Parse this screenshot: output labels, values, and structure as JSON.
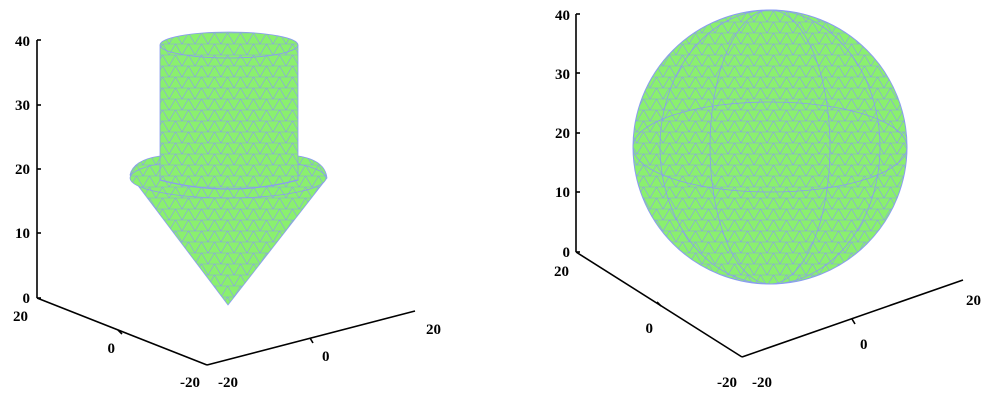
{
  "colors": {
    "surface": "#8af06e",
    "mesh": "#8a9cf0",
    "axis": "#000000"
  },
  "panels": [
    {
      "shape": "cylinder-on-cone",
      "z_ticks": [
        "0",
        "10",
        "20",
        "30",
        "40"
      ],
      "y_ticks": [
        "20",
        "0",
        "-20"
      ],
      "x_ticks": [
        "-20",
        "0",
        "20"
      ]
    },
    {
      "shape": "sphere",
      "z_ticks": [
        "0",
        "10",
        "20",
        "30",
        "40"
      ],
      "y_ticks": [
        "20",
        "0",
        "-20"
      ],
      "x_ticks": [
        "-20",
        "0",
        "20"
      ]
    }
  ]
}
